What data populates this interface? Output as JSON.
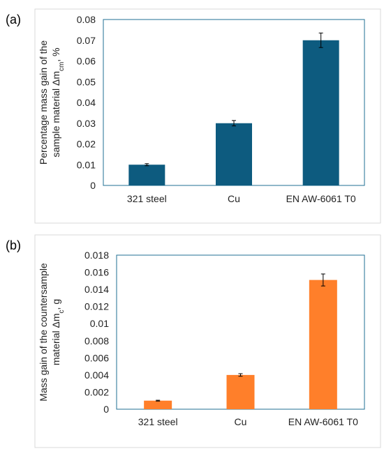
{
  "panels": [
    {
      "label": "(a)"
    },
    {
      "label": "(b)"
    }
  ],
  "chart_data": [
    {
      "type": "bar",
      "categories": [
        "321 steel",
        "Cu",
        "EN AW-6061 T0"
      ],
      "values": [
        0.01,
        0.03,
        0.07
      ],
      "errors": [
        0.0005,
        0.0013,
        0.0035
      ],
      "ylabel_line1": "Percentage mass gain of the",
      "ylabel_line2_pre": "sample material Δm",
      "ylabel_line2_sub": "cm",
      "ylabel_line2_post": ", %",
      "ylim": [
        0,
        0.08
      ],
      "yticks": [
        "0",
        "0.01",
        "0.02",
        "0.03",
        "0.04",
        "0.05",
        "0.06",
        "0.07",
        "0.08"
      ],
      "ytick_values": [
        0,
        0.01,
        0.02,
        0.03,
        0.04,
        0.05,
        0.06,
        0.07,
        0.08
      ],
      "color": "#0d5b7f",
      "axis_color": "#1f6f93",
      "grid": false
    },
    {
      "type": "bar",
      "categories": [
        "321 steel",
        "Cu",
        "EN AW-6061 T0"
      ],
      "values": [
        0.001,
        0.004,
        0.0151
      ],
      "errors": [
        5e-05,
        0.00015,
        0.0007
      ],
      "ylabel_line1": "Mass gain of the countersample",
      "ylabel_line2_pre": "material Δm",
      "ylabel_line2_sub": "c",
      "ylabel_line2_post": ", g",
      "ylim": [
        0,
        0.018
      ],
      "yticks": [
        "0",
        "0.002",
        "0.004",
        "0.006",
        "0.008",
        "0.01",
        "0.012",
        "0.014",
        "0.016",
        "0.018"
      ],
      "ytick_values": [
        0,
        0.002,
        0.004,
        0.006,
        0.008,
        0.01,
        0.012,
        0.014,
        0.016,
        0.018
      ],
      "color": "#ff7f2a",
      "axis_color": "#1f6f93",
      "grid": false
    }
  ]
}
